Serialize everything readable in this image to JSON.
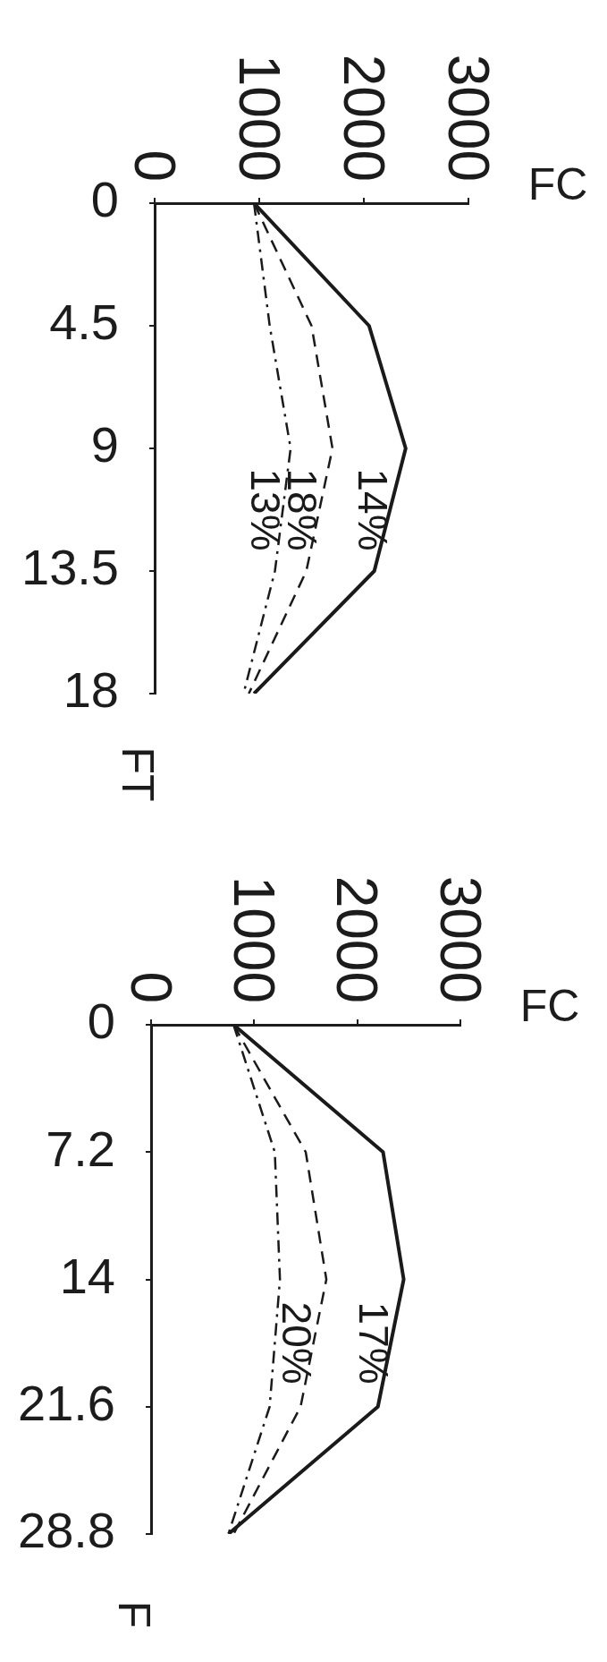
{
  "chart_data": [
    {
      "type": "line",
      "xlabel": "FC",
      "ylabel": "FT",
      "xlim": [
        0,
        3000
      ],
      "xticks": [
        0,
        1000,
        2000,
        3000
      ],
      "ylim": [
        18,
        0
      ],
      "yticks": [
        0,
        4.5,
        9,
        13.5,
        18
      ],
      "marker": "none",
      "series": [
        {
          "name": "14%",
          "color": "#1a1a1a",
          "line_style": "solid",
          "x": [
            950,
            2050,
            2400,
            2100,
            950
          ],
          "values": [
            0,
            4.5,
            9,
            13.5,
            18
          ]
        },
        {
          "name": "18%",
          "color": "#1a1a1a",
          "line_style": "dashed",
          "x": [
            950,
            1500,
            1700,
            1450,
            900
          ],
          "values": [
            0,
            4.5,
            9,
            13.5,
            18
          ]
        },
        {
          "name": "13%",
          "color": "#1a1a1a",
          "line_style": "dashdot",
          "x": [
            950,
            1100,
            1300,
            1150,
            850
          ],
          "values": [
            0,
            4.5,
            9,
            13.5,
            18
          ]
        }
      ]
    },
    {
      "type": "line",
      "xlabel": "FC",
      "ylabel": "F",
      "xlim": [
        0,
        3000
      ],
      "xticks": [
        0,
        1000,
        2000,
        3000
      ],
      "ylim": [
        28.8,
        0
      ],
      "yticks": [
        0,
        7.2,
        {
          "value": 14.4,
          "label": "14"
        },
        21.6,
        28.8
      ],
      "marker": "none",
      "series": [
        {
          "name": "17%",
          "color": "#1a1a1a",
          "line_style": "solid",
          "x": [
            800,
            2250,
            2450,
            2200,
            750
          ],
          "values": [
            0,
            7.2,
            14.4,
            21.6,
            28.8
          ]
        },
        {
          "name": "20%",
          "color": "#1a1a1a",
          "line_style": "dashed",
          "x": [
            800,
            1500,
            1700,
            1450,
            800
          ],
          "values": [
            0,
            7.2,
            14.4,
            21.6,
            28.8
          ]
        },
        {
          "color": "#1a1a1a",
          "line_style": "dashdot",
          "x": [
            800,
            1200,
            1250,
            1150,
            750
          ],
          "values": [
            0,
            7.2,
            14.4,
            21.6,
            28.8
          ]
        }
      ]
    }
  ]
}
